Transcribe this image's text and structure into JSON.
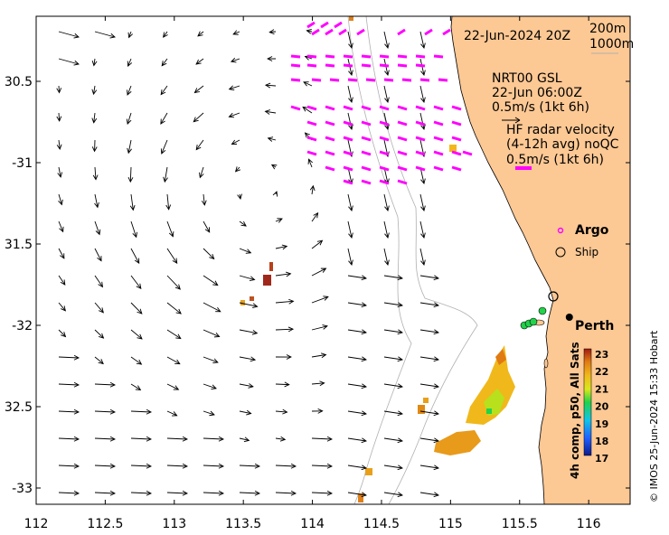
{
  "map": {
    "date_label": "22-Jun-2024 20Z",
    "isobath_labels": [
      "200m",
      "1000m"
    ],
    "x_ticks": [
      {
        "value": 112,
        "label": "112"
      },
      {
        "value": 112.5,
        "label": "112.5"
      },
      {
        "value": 113,
        "label": "113"
      },
      {
        "value": 113.5,
        "label": "113.5"
      },
      {
        "value": 114,
        "label": "114"
      },
      {
        "value": 114.5,
        "label": "114.5"
      },
      {
        "value": 115,
        "label": "115"
      },
      {
        "value": 115.5,
        "label": "115.5"
      },
      {
        "value": 116,
        "label": "116"
      }
    ],
    "y_ticks": [
      {
        "value": -30.5,
        "label": "30.5"
      },
      {
        "value": -31,
        "label": "-31"
      },
      {
        "value": -31.5,
        "label": "31.5"
      },
      {
        "value": -32,
        "label": "-32"
      },
      {
        "value": -32.5,
        "label": "32.5"
      },
      {
        "value": -33,
        "label": "-33"
      }
    ],
    "lon_range": [
      112,
      116.3
    ],
    "lat_range": [
      -33.1,
      -30.1
    ],
    "model_legend": {
      "name": "NRT00 GSL",
      "time": "22-Jun 06:00Z",
      "scale": "0.5m/s (1kt 6h)"
    },
    "radar_legend": {
      "title": "HF radar velocity",
      "subtitle": "(4-12h avg) noQC",
      "scale": "0.5m/s (1kt 6h)"
    },
    "symbols": {
      "argo": "Argo",
      "ship": "Ship"
    },
    "city": {
      "name": "Perth",
      "lon": 115.86,
      "lat": -31.95
    },
    "colorbar": {
      "ticks": [
        "23",
        "22",
        "21",
        "20",
        "19",
        "18",
        "17"
      ],
      "caption": "4h comp, p50, All Sats"
    },
    "credit": "© IMOS 25-Jun-2024 15:33 Hobart",
    "colors": {
      "land": "#fcc894",
      "radar_vectors": "#ff00ff",
      "model_vectors": "#000000",
      "argo_marker": "#ff00ff",
      "coast_line": "#000000"
    }
  }
}
